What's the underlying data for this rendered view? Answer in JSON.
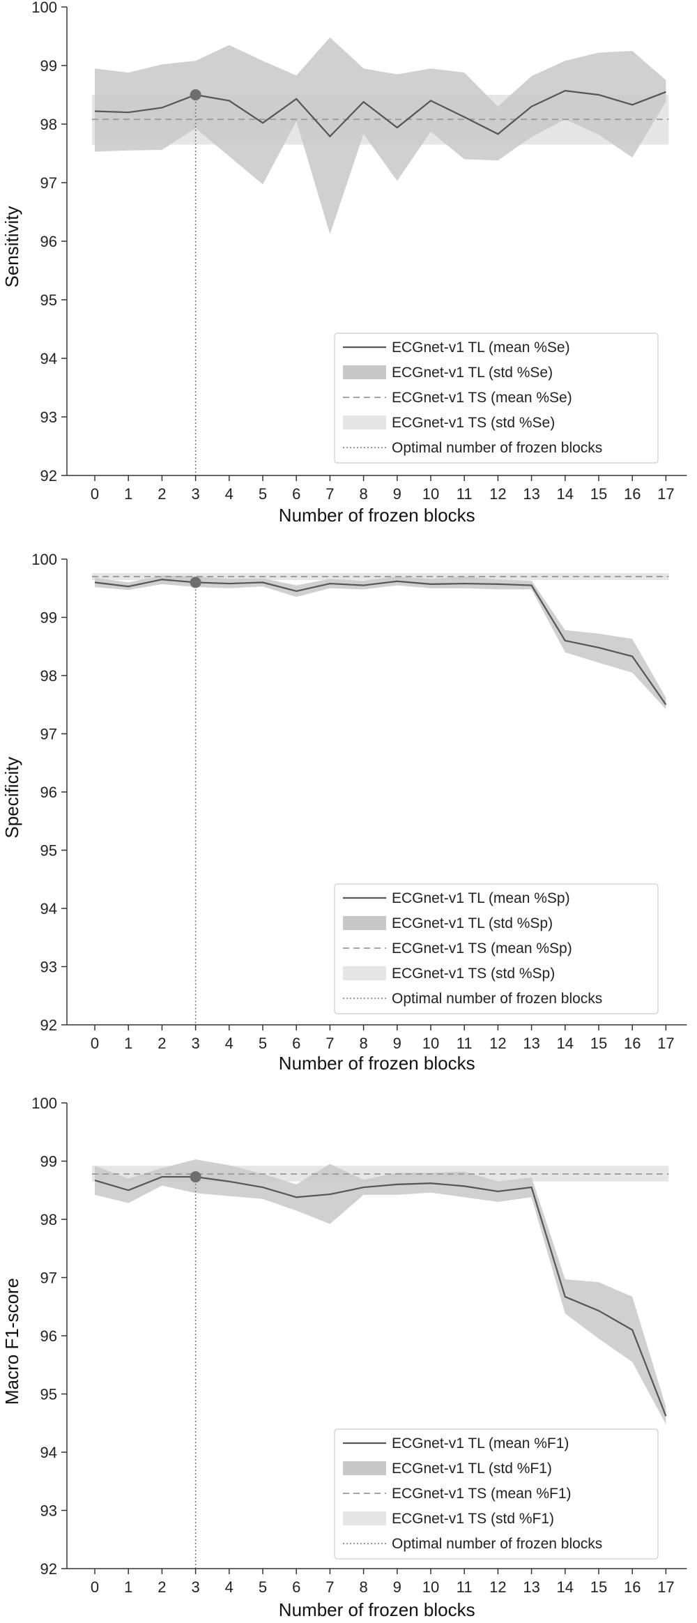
{
  "colors": {
    "tl_line": "#555555",
    "tl_band": "#c8c8c8",
    "ts_line": "#999999",
    "ts_band": "#e6e6e6",
    "optimal_line": "#777777",
    "marker": "#6e6e6e",
    "axis": "#333333"
  },
  "chart_data": [
    {
      "type": "line",
      "xlabel": "Number of frozen blocks",
      "ylabel": "Sensitivity",
      "ylim": [
        92,
        100
      ],
      "yticks": [
        92,
        93,
        94,
        95,
        96,
        97,
        98,
        99,
        100
      ],
      "x": [
        0,
        1,
        2,
        3,
        4,
        5,
        6,
        7,
        8,
        9,
        10,
        11,
        12,
        13,
        14,
        15,
        16,
        17
      ],
      "optimal_x": 3,
      "legend_position": "lower-right",
      "series": [
        {
          "name": "ECGnet-v1 TL (mean %Se)",
          "kind": "mean",
          "values": [
            98.22,
            98.2,
            98.28,
            98.5,
            98.4,
            98.02,
            98.43,
            97.79,
            98.38,
            97.94,
            98.4,
            98.12,
            97.83,
            98.3,
            98.57,
            98.5,
            98.33,
            98.55
          ]
        },
        {
          "name": "ECGnet-v1 TL (std %Se)",
          "kind": "band",
          "lower": [
            97.53,
            97.55,
            97.56,
            97.93,
            97.45,
            96.97,
            98.05,
            96.12,
            97.83,
            97.03,
            97.87,
            97.4,
            97.38,
            97.78,
            98.08,
            97.82,
            97.43,
            98.38
          ],
          "upper": [
            98.95,
            98.88,
            99.02,
            99.08,
            99.35,
            99.08,
            98.83,
            99.48,
            98.95,
            98.85,
            98.95,
            98.88,
            98.3,
            98.82,
            99.08,
            99.22,
            99.25,
            98.75
          ]
        },
        {
          "name": "ECGnet-v1 TS (mean %Se)",
          "kind": "ts_mean",
          "value": 98.08
        },
        {
          "name": "ECGnet-v1 TS (std %Se)",
          "kind": "ts_band",
          "lower": 97.65,
          "upper": 98.5
        },
        {
          "name": "Optimal number of frozen blocks",
          "kind": "optimal"
        }
      ]
    },
    {
      "type": "line",
      "xlabel": "Number of frozen blocks",
      "ylabel": "Specificity",
      "ylim": [
        92,
        100
      ],
      "yticks": [
        92,
        93,
        94,
        95,
        96,
        97,
        98,
        99,
        100
      ],
      "x": [
        0,
        1,
        2,
        3,
        4,
        5,
        6,
        7,
        8,
        9,
        10,
        11,
        12,
        13,
        14,
        15,
        16,
        17
      ],
      "optimal_x": 3,
      "legend_position": "lower-right",
      "series": [
        {
          "name": "ECGnet-v1 TL (mean %Sp)",
          "kind": "mean",
          "values": [
            99.6,
            99.53,
            99.65,
            99.6,
            99.58,
            99.6,
            99.45,
            99.58,
            99.55,
            99.62,
            99.57,
            99.58,
            99.57,
            99.55,
            98.6,
            98.48,
            98.33,
            97.5
          ]
        },
        {
          "name": "ECGnet-v1 TL (std %Sp)",
          "kind": "band",
          "lower": [
            99.52,
            99.47,
            99.57,
            99.52,
            99.5,
            99.53,
            99.35,
            99.5,
            99.48,
            99.55,
            99.5,
            99.5,
            99.48,
            99.48,
            98.4,
            98.22,
            98.05,
            97.42
          ],
          "upper": [
            99.68,
            99.6,
            99.72,
            99.7,
            99.66,
            99.67,
            99.55,
            99.66,
            99.63,
            99.7,
            99.66,
            99.7,
            99.65,
            99.63,
            98.78,
            98.72,
            98.63,
            97.62
          ]
        },
        {
          "name": "ECGnet-v1 TS (mean %Sp)",
          "kind": "ts_mean",
          "value": 99.7
        },
        {
          "name": "ECGnet-v1 TS (std %Sp)",
          "kind": "ts_band",
          "lower": 99.64,
          "upper": 99.76
        },
        {
          "name": "Optimal number of frozen blocks",
          "kind": "optimal"
        }
      ]
    },
    {
      "type": "line",
      "xlabel": "Number of frozen blocks",
      "ylabel": "Macro F1-score",
      "ylim": [
        92,
        100
      ],
      "yticks": [
        92,
        93,
        94,
        95,
        96,
        97,
        98,
        99,
        100
      ],
      "x": [
        0,
        1,
        2,
        3,
        4,
        5,
        6,
        7,
        8,
        9,
        10,
        11,
        12,
        13,
        14,
        15,
        16,
        17
      ],
      "optimal_x": 3,
      "legend_position": "lower-right",
      "series": [
        {
          "name": "ECGnet-v1 TL (mean %F1)",
          "kind": "mean",
          "values": [
            98.67,
            98.5,
            98.73,
            98.73,
            98.65,
            98.55,
            98.38,
            98.43,
            98.55,
            98.6,
            98.62,
            98.57,
            98.48,
            98.55,
            96.67,
            96.43,
            96.1,
            94.62
          ]
        },
        {
          "name": "ECGnet-v1 TL (std %F1)",
          "kind": "band",
          "lower": [
            98.42,
            98.28,
            98.58,
            98.45,
            98.4,
            98.35,
            98.15,
            97.92,
            98.42,
            98.42,
            98.46,
            98.38,
            98.3,
            98.38,
            96.38,
            95.95,
            95.55,
            94.48
          ],
          "upper": [
            98.92,
            98.7,
            98.88,
            99.03,
            98.93,
            98.78,
            98.6,
            98.95,
            98.68,
            98.8,
            98.8,
            98.82,
            98.65,
            98.72,
            96.97,
            96.92,
            96.67,
            94.78
          ]
        },
        {
          "name": "ECGnet-v1 TS (mean %F1)",
          "kind": "ts_mean",
          "value": 98.78
        },
        {
          "name": "ECGnet-v1 TS (std %F1)",
          "kind": "ts_band",
          "lower": 98.65,
          "upper": 98.92
        },
        {
          "name": "Optimal number of frozen blocks",
          "kind": "optimal"
        }
      ]
    }
  ]
}
